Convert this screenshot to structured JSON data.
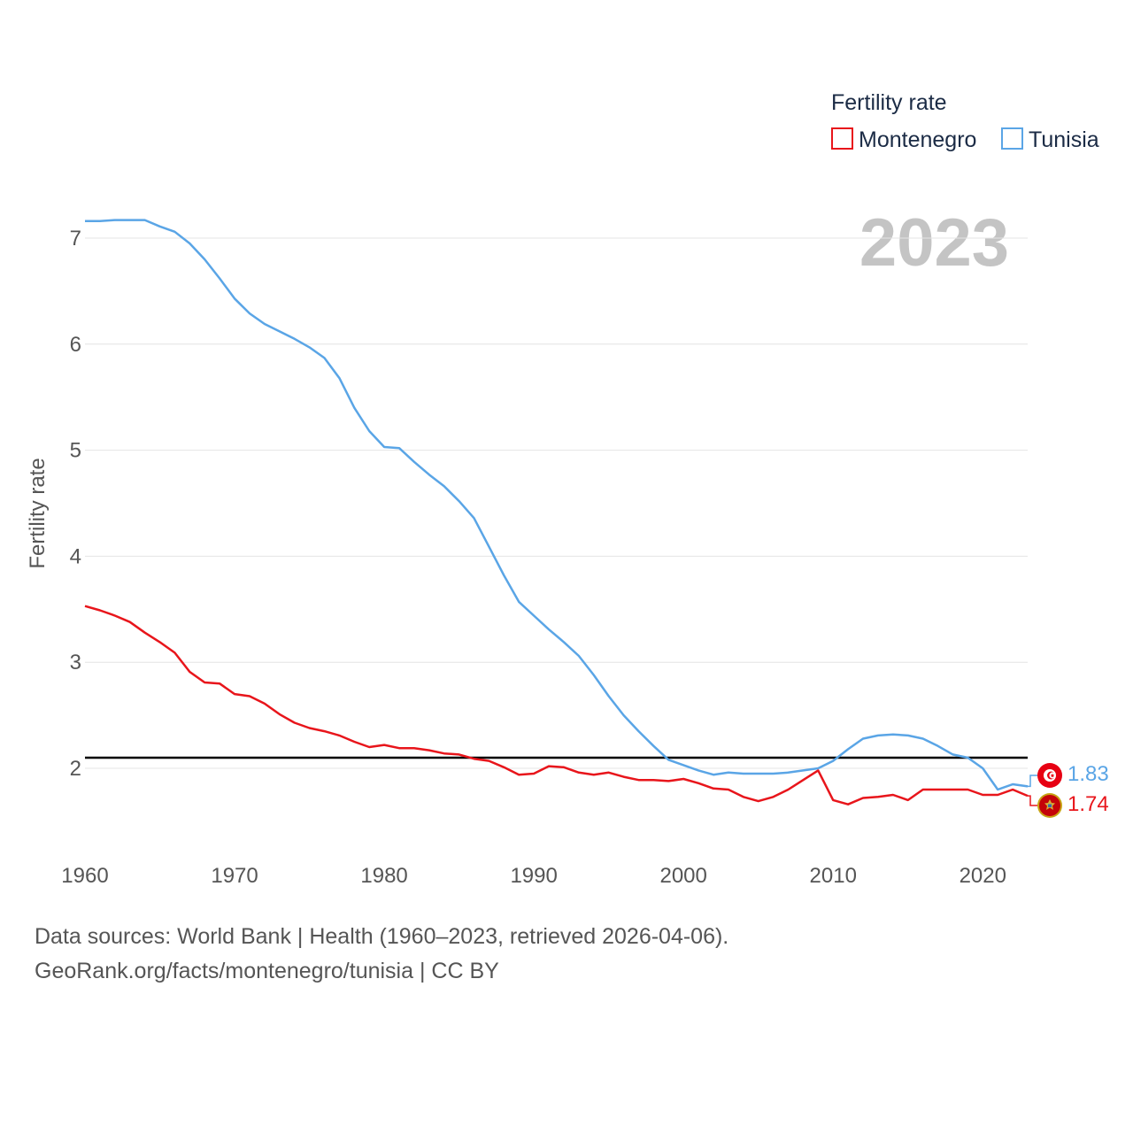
{
  "legend": {
    "title": "Fertility rate",
    "items": [
      {
        "label": "Montenegro",
        "color": "#e8151b"
      },
      {
        "label": "Tunisia",
        "color": "#5aa5e6"
      }
    ]
  },
  "year_display": "2023",
  "footer": {
    "line1": "Data sources: World Bank | Health (1960–2023, retrieved 2026-04-06).",
    "line2": "GeoRank.org/facts/montenegro/tunisia | CC BY"
  },
  "end_labels": {
    "tunisia": "1.83",
    "montenegro": "1.74"
  },
  "chart_data": {
    "type": "line",
    "title": "",
    "xlabel": "",
    "ylabel": "Fertility rate",
    "xlim": [
      1960,
      2023
    ],
    "ylim": [
      1.2,
      7.25
    ],
    "x_ticks": [
      1960,
      1970,
      1980,
      1990,
      2000,
      2010,
      2020
    ],
    "y_ticks": [
      2,
      3,
      4,
      5,
      6,
      7
    ],
    "reference_line": {
      "value": 2.1,
      "color": "#000000"
    },
    "series": [
      {
        "name": "Montenegro",
        "color": "#e8151b",
        "x": [
          1960,
          1961,
          1962,
          1963,
          1964,
          1965,
          1966,
          1967,
          1968,
          1969,
          1970,
          1971,
          1972,
          1973,
          1974,
          1975,
          1976,
          1977,
          1978,
          1979,
          1980,
          1981,
          1982,
          1983,
          1984,
          1985,
          1986,
          1987,
          1988,
          1989,
          1990,
          1991,
          1992,
          1993,
          1994,
          1995,
          1996,
          1997,
          1998,
          1999,
          2000,
          2001,
          2002,
          2003,
          2004,
          2005,
          2006,
          2007,
          2008,
          2009,
          2010,
          2011,
          2012,
          2013,
          2014,
          2015,
          2016,
          2017,
          2018,
          2019,
          2020,
          2021,
          2022,
          2023
        ],
        "values": [
          3.53,
          3.49,
          3.44,
          3.38,
          3.28,
          3.19,
          3.09,
          2.91,
          2.81,
          2.8,
          2.7,
          2.68,
          2.61,
          2.51,
          2.43,
          2.38,
          2.35,
          2.31,
          2.25,
          2.2,
          2.22,
          2.19,
          2.19,
          2.17,
          2.14,
          2.13,
          2.09,
          2.07,
          2.01,
          1.94,
          1.95,
          2.02,
          2.01,
          1.96,
          1.94,
          1.96,
          1.92,
          1.89,
          1.89,
          1.88,
          1.9,
          1.86,
          1.81,
          1.8,
          1.73,
          1.69,
          1.73,
          1.8,
          1.89,
          1.98,
          1.7,
          1.66,
          1.72,
          1.73,
          1.75,
          1.7,
          1.8,
          1.8,
          1.8,
          1.8,
          1.75,
          1.75,
          1.8,
          1.74
        ]
      },
      {
        "name": "Tunisia",
        "color": "#5aa5e6",
        "x": [
          1960,
          1961,
          1962,
          1963,
          1964,
          1965,
          1966,
          1967,
          1968,
          1969,
          1970,
          1971,
          1972,
          1973,
          1974,
          1975,
          1976,
          1977,
          1978,
          1979,
          1980,
          1981,
          1982,
          1983,
          1984,
          1985,
          1986,
          1987,
          1988,
          1989,
          1990,
          1991,
          1992,
          1993,
          1994,
          1995,
          1996,
          1997,
          1998,
          1999,
          2000,
          2001,
          2002,
          2003,
          2004,
          2005,
          2006,
          2007,
          2008,
          2009,
          2010,
          2011,
          2012,
          2013,
          2014,
          2015,
          2016,
          2017,
          2018,
          2019,
          2020,
          2021,
          2022,
          2023
        ],
        "values": [
          7.16,
          7.16,
          7.17,
          7.17,
          7.17,
          7.11,
          7.06,
          6.95,
          6.8,
          6.62,
          6.43,
          6.29,
          6.19,
          6.12,
          6.05,
          5.97,
          5.87,
          5.68,
          5.4,
          5.18,
          5.03,
          5.02,
          4.89,
          4.77,
          4.66,
          4.52,
          4.36,
          4.09,
          3.82,
          3.57,
          3.44,
          3.31,
          3.19,
          3.06,
          2.88,
          2.68,
          2.5,
          2.35,
          2.21,
          2.08,
          2.03,
          1.98,
          1.94,
          1.96,
          1.95,
          1.95,
          1.95,
          1.96,
          1.98,
          2.0,
          2.07,
          2.18,
          2.28,
          2.31,
          2.32,
          2.31,
          2.28,
          2.21,
          2.13,
          2.1,
          2.0,
          1.8,
          1.85,
          1.83
        ]
      }
    ]
  }
}
